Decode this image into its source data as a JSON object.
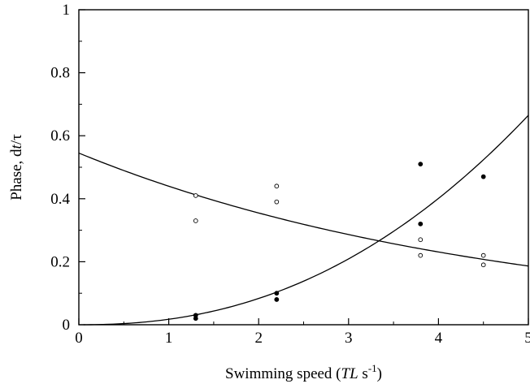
{
  "chart_data": {
    "type": "scatter",
    "xlabel": {
      "prefix": "Swimming speed (",
      "italic": "TL",
      "unit": " s",
      "sup": "-1",
      "suffix": ")"
    },
    "ylabel": {
      "prefix": "Phase, d",
      "italic": "t",
      "suffix": "/τ"
    },
    "xlim": [
      0,
      5
    ],
    "ylim": [
      0,
      1
    ],
    "xticks": [
      0,
      1,
      2,
      3,
      4,
      5
    ],
    "yticks": [
      0,
      0.2,
      0.4,
      0.6,
      0.8,
      1
    ],
    "ytick_labels": [
      "0",
      "0.2",
      "0.4",
      "0.6",
      "0.8",
      "1"
    ],
    "grid": false,
    "series": [
      {
        "marker": "filled-circle",
        "points": [
          {
            "x": 1.3,
            "y": 0.03
          },
          {
            "x": 1.3,
            "y": 0.02
          },
          {
            "x": 2.2,
            "y": 0.1
          },
          {
            "x": 2.2,
            "y": 0.08
          },
          {
            "x": 3.8,
            "y": 0.51
          },
          {
            "x": 3.8,
            "y": 0.32
          },
          {
            "x": 4.5,
            "y": 0.47
          }
        ],
        "fit": {
          "form": "power",
          "a": 0.01736,
          "b": 2.265,
          "x_from": 0.05,
          "x_to": 5
        }
      },
      {
        "marker": "open-circle",
        "points": [
          {
            "x": 1.3,
            "y": 0.41
          },
          {
            "x": 1.3,
            "y": 0.33
          },
          {
            "x": 2.2,
            "y": 0.44
          },
          {
            "x": 2.2,
            "y": 0.39
          },
          {
            "x": 3.8,
            "y": 0.27
          },
          {
            "x": 3.8,
            "y": 0.22
          },
          {
            "x": 4.5,
            "y": 0.22
          },
          {
            "x": 4.5,
            "y": 0.19
          }
        ],
        "fit": {
          "form": "exponential",
          "a": 0.545,
          "b": -0.2146,
          "x_from": 0,
          "x_to": 5
        }
      }
    ]
  }
}
